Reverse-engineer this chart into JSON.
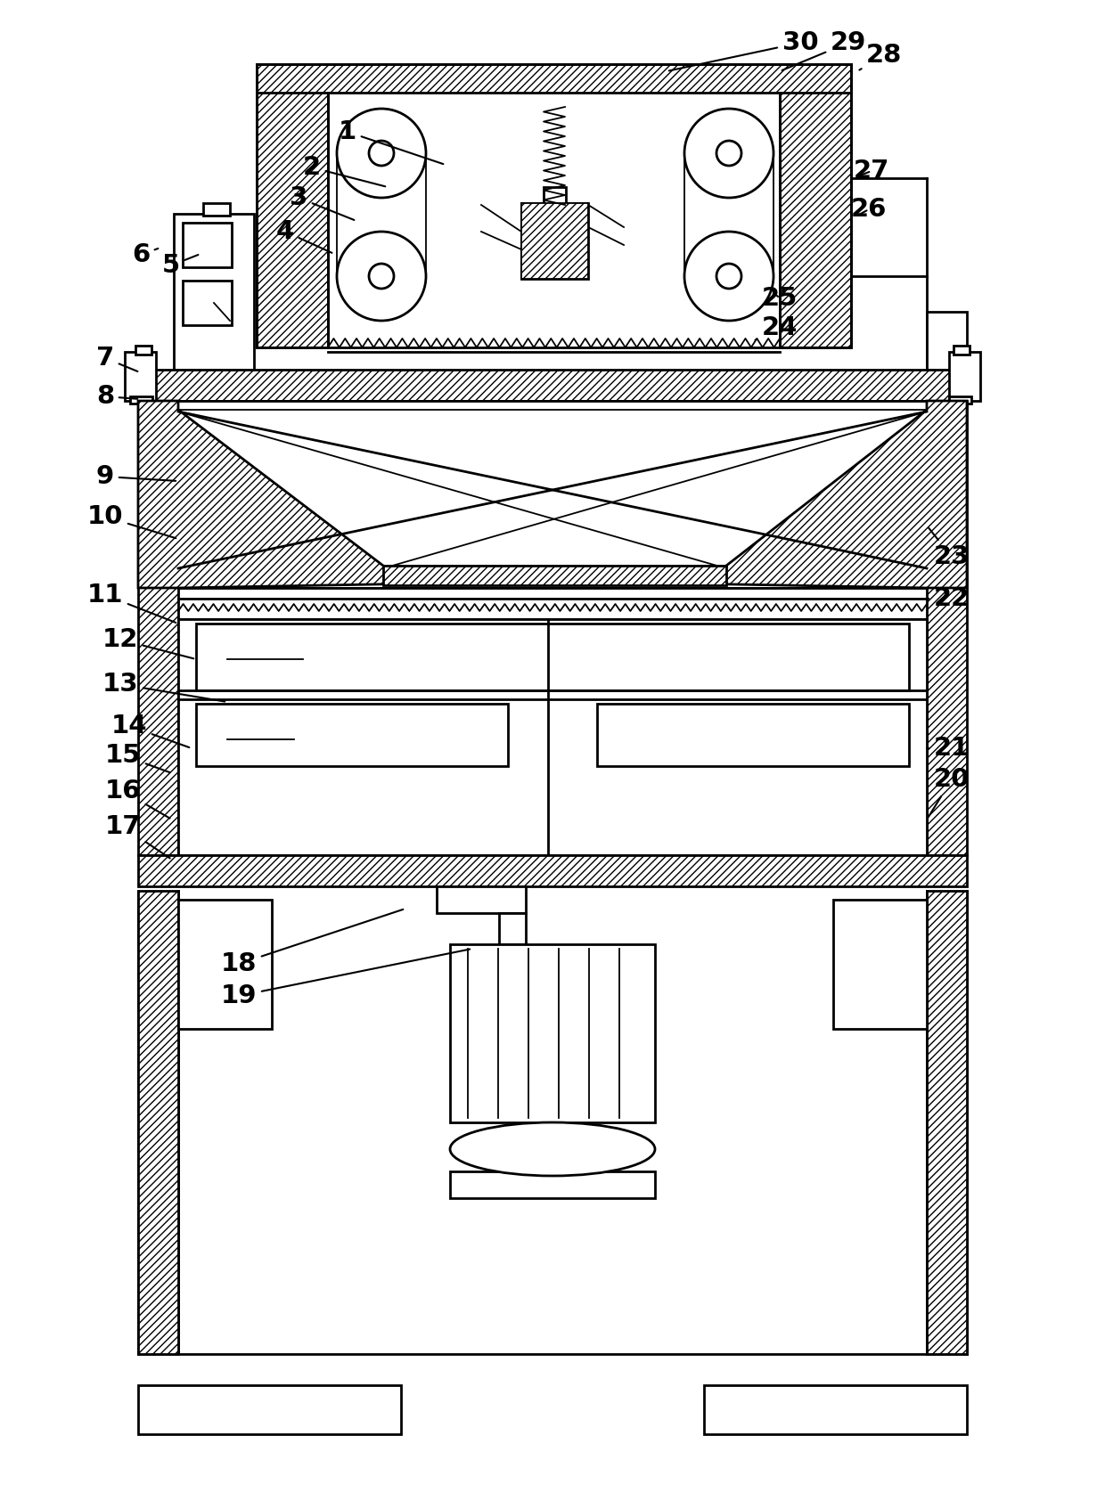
{
  "background_color": "#ffffff",
  "figure_width": 12.4,
  "figure_height": 16.94,
  "labels_data": [
    [
      "1",
      390,
      148,
      500,
      185
    ],
    [
      "2",
      350,
      188,
      435,
      210
    ],
    [
      "3",
      335,
      222,
      400,
      248
    ],
    [
      "4",
      320,
      260,
      375,
      285
    ],
    [
      "5",
      192,
      298,
      225,
      285
    ],
    [
      "6",
      158,
      286,
      180,
      278
    ],
    [
      "7",
      118,
      402,
      157,
      418
    ],
    [
      "8",
      118,
      445,
      157,
      448
    ],
    [
      "9",
      118,
      535,
      200,
      540
    ],
    [
      "10",
      118,
      580,
      200,
      605
    ],
    [
      "11",
      118,
      668,
      200,
      700
    ],
    [
      "12",
      135,
      718,
      220,
      740
    ],
    [
      "13",
      135,
      768,
      255,
      788
    ],
    [
      "14",
      145,
      815,
      215,
      840
    ],
    [
      "15",
      138,
      848,
      193,
      868
    ],
    [
      "16",
      138,
      888,
      193,
      920
    ],
    [
      "17",
      138,
      928,
      193,
      965
    ],
    [
      "18",
      268,
      1082,
      455,
      1020
    ],
    [
      "19",
      268,
      1118,
      530,
      1065
    ],
    [
      "20",
      1068,
      875,
      1040,
      920
    ],
    [
      "21",
      1068,
      840,
      1040,
      840
    ],
    [
      "22",
      1068,
      672,
      1040,
      672
    ],
    [
      "23",
      1068,
      625,
      1040,
      590
    ],
    [
      "24",
      875,
      368,
      845,
      383
    ],
    [
      "25",
      875,
      335,
      870,
      330
    ],
    [
      "26",
      975,
      235,
      962,
      242
    ],
    [
      "27",
      978,
      192,
      962,
      198
    ],
    [
      "28",
      992,
      62,
      962,
      80
    ],
    [
      "29",
      952,
      48,
      875,
      80
    ],
    [
      "30",
      898,
      48,
      748,
      80
    ]
  ]
}
